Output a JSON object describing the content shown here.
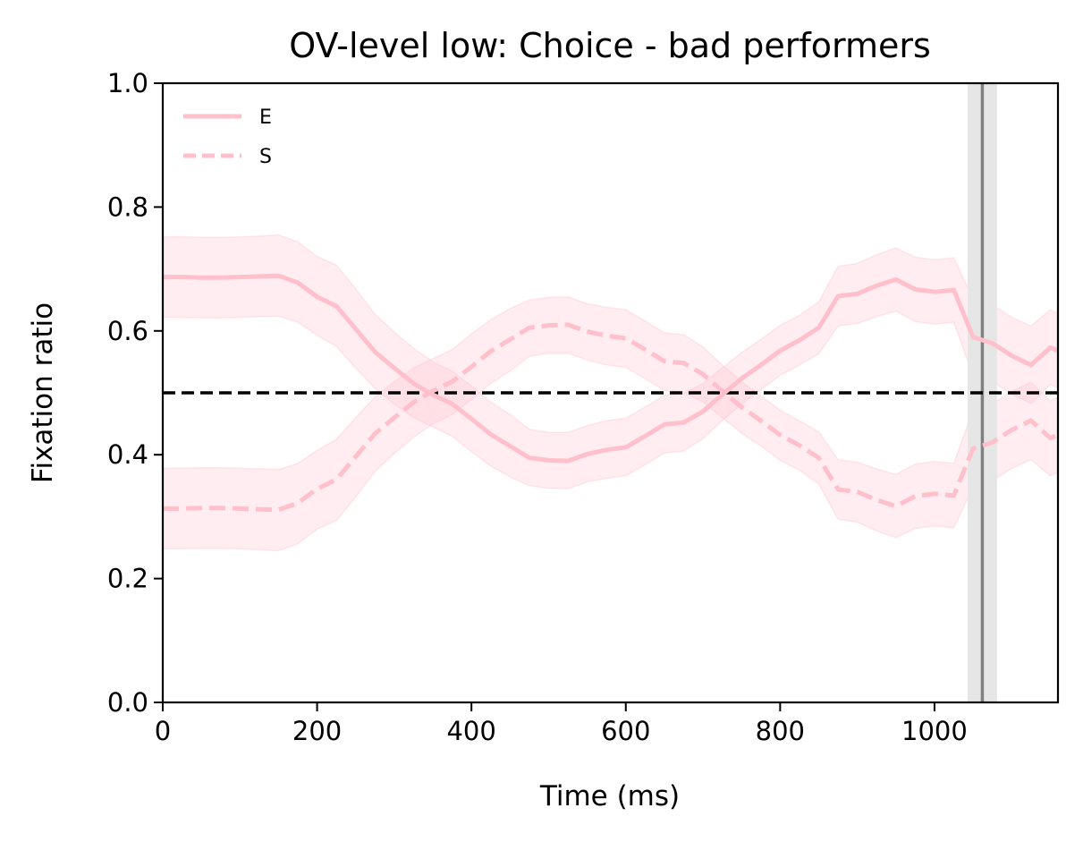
{
  "chart_data": {
    "type": "line",
    "title": "OV-level low: Choice - bad performers",
    "xlabel": "Time (ms)",
    "ylabel": "Fixation ratio",
    "xlim": [
      0,
      1160
    ],
    "ylim": [
      0,
      1
    ],
    "xticks": [
      0,
      200,
      400,
      600,
      800,
      1000
    ],
    "yticks": [
      0.0,
      0.2,
      0.4,
      0.6,
      0.8,
      1.0
    ],
    "xtick_labels": [
      "0",
      "200",
      "400",
      "600",
      "800",
      "1000"
    ],
    "ytick_labels": [
      "0.0",
      "0.2",
      "0.4",
      "0.6",
      "0.8",
      "1.0"
    ],
    "grid": false,
    "legend": {
      "position": "top-left"
    },
    "series_color": "#ffc0cb",
    "band_color": "#ffc0cb",
    "series": [
      {
        "name": "E",
        "style": "solid",
        "x": [
          0,
          25,
          50,
          75,
          100,
          125,
          150,
          175,
          200,
          225,
          250,
          275,
          300,
          325,
          350,
          375,
          400,
          425,
          450,
          475,
          500,
          525,
          550,
          575,
          600,
          625,
          650,
          675,
          700,
          725,
          750,
          775,
          800,
          825,
          850,
          875,
          900,
          925,
          950,
          975,
          1000,
          1025,
          1050,
          1075,
          1100,
          1125,
          1150,
          1160
        ],
        "y": [
          0.687,
          0.687,
          0.686,
          0.686,
          0.687,
          0.688,
          0.689,
          0.678,
          0.655,
          0.64,
          0.603,
          0.566,
          0.54,
          0.515,
          0.497,
          0.482,
          0.458,
          0.433,
          0.414,
          0.395,
          0.391,
          0.39,
          0.401,
          0.408,
          0.412,
          0.43,
          0.449,
          0.452,
          0.47,
          0.497,
          0.523,
          0.545,
          0.568,
          0.585,
          0.605,
          0.656,
          0.66,
          0.673,
          0.683,
          0.667,
          0.663,
          0.666,
          0.59,
          0.58,
          0.56,
          0.545,
          0.573,
          0.568
        ],
        "lower": [
          0.622,
          0.622,
          0.621,
          0.621,
          0.622,
          0.623,
          0.624,
          0.614,
          0.593,
          0.575,
          0.54,
          0.507,
          0.482,
          0.46,
          0.445,
          0.43,
          0.405,
          0.382,
          0.364,
          0.35,
          0.346,
          0.345,
          0.356,
          0.362,
          0.366,
          0.384,
          0.403,
          0.406,
          0.426,
          0.455,
          0.482,
          0.505,
          0.528,
          0.545,
          0.563,
          0.608,
          0.612,
          0.623,
          0.632,
          0.615,
          0.611,
          0.614,
          0.528,
          0.518,
          0.498,
          0.483,
          0.513,
          0.508
        ],
        "upper": [
          0.752,
          0.752,
          0.751,
          0.751,
          0.752,
          0.753,
          0.755,
          0.744,
          0.72,
          0.706,
          0.668,
          0.627,
          0.598,
          0.572,
          0.55,
          0.535,
          0.511,
          0.485,
          0.465,
          0.441,
          0.436,
          0.436,
          0.447,
          0.455,
          0.459,
          0.477,
          0.496,
          0.499,
          0.515,
          0.54,
          0.565,
          0.586,
          0.609,
          0.625,
          0.647,
          0.704,
          0.709,
          0.723,
          0.734,
          0.719,
          0.715,
          0.718,
          0.652,
          0.642,
          0.622,
          0.608,
          0.634,
          0.628
        ]
      },
      {
        "name": "S",
        "style": "dashed",
        "x": [
          0,
          25,
          50,
          75,
          100,
          125,
          150,
          175,
          200,
          225,
          250,
          275,
          300,
          325,
          350,
          375,
          400,
          425,
          450,
          475,
          500,
          525,
          550,
          575,
          600,
          625,
          650,
          675,
          700,
          725,
          750,
          775,
          800,
          825,
          850,
          875,
          900,
          925,
          950,
          975,
          1000,
          1025,
          1050,
          1075,
          1100,
          1125,
          1150,
          1160
        ],
        "y": [
          0.313,
          0.313,
          0.314,
          0.314,
          0.313,
          0.312,
          0.311,
          0.322,
          0.345,
          0.36,
          0.397,
          0.434,
          0.46,
          0.485,
          0.503,
          0.518,
          0.542,
          0.567,
          0.586,
          0.605,
          0.609,
          0.61,
          0.599,
          0.592,
          0.588,
          0.57,
          0.551,
          0.548,
          0.53,
          0.503,
          0.477,
          0.455,
          0.432,
          0.415,
          0.395,
          0.344,
          0.34,
          0.327,
          0.317,
          0.333,
          0.337,
          0.334,
          0.41,
          0.42,
          0.44,
          0.455,
          0.427,
          0.432
        ],
        "lower": [
          0.248,
          0.248,
          0.249,
          0.249,
          0.248,
          0.247,
          0.245,
          0.256,
          0.28,
          0.294,
          0.332,
          0.373,
          0.402,
          0.428,
          0.45,
          0.465,
          0.489,
          0.515,
          0.535,
          0.559,
          0.564,
          0.564,
          0.553,
          0.545,
          0.541,
          0.523,
          0.504,
          0.501,
          0.485,
          0.46,
          0.435,
          0.414,
          0.391,
          0.375,
          0.353,
          0.296,
          0.291,
          0.277,
          0.266,
          0.281,
          0.285,
          0.282,
          0.348,
          0.358,
          0.378,
          0.392,
          0.366,
          0.372
        ],
        "upper": [
          0.378,
          0.378,
          0.379,
          0.379,
          0.378,
          0.377,
          0.376,
          0.386,
          0.407,
          0.425,
          0.46,
          0.493,
          0.518,
          0.54,
          0.555,
          0.57,
          0.595,
          0.618,
          0.636,
          0.65,
          0.654,
          0.655,
          0.644,
          0.638,
          0.634,
          0.616,
          0.597,
          0.594,
          0.574,
          0.545,
          0.518,
          0.495,
          0.472,
          0.455,
          0.437,
          0.392,
          0.388,
          0.377,
          0.368,
          0.385,
          0.389,
          0.386,
          0.472,
          0.482,
          0.502,
          0.517,
          0.487,
          0.492
        ]
      }
    ],
    "reference_line": {
      "y": 0.5,
      "style": "dashed",
      "color": "#000000"
    },
    "vertical_marker": {
      "x": 1062,
      "band": [
        1043,
        1081
      ],
      "color": "#808080",
      "band_color": "#e6e6e6"
    }
  }
}
